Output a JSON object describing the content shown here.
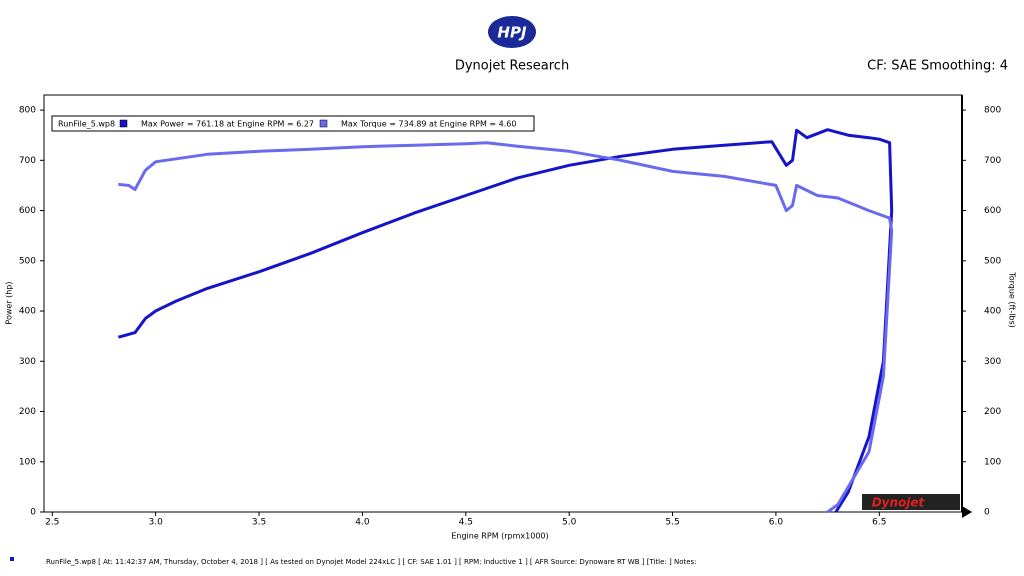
{
  "chart_data": {
    "type": "line",
    "logo_text": "HPJ",
    "title": "Dynojet Research",
    "subtitle": "CF: SAE Smoothing: 4",
    "legend_title": "RunFile_5.wp8",
    "xlabel": "Engine RPM (rpmx1000)",
    "ylabel": "Power (hp)",
    "y2label": "Torque (ft-lbs)",
    "brand_text": "Dynojet",
    "footer": "RunFile_5.wp8 [ At: 11:42:37 AM, Thursday, October 4, 2018 ] [ As tested on Dynojet Model 224xLC ] [ CF: SAE 1.01 ] [ RPM: Inductive 1 ] [ AFR Source: Dynoware RT WB ] [Title: ] Notes:",
    "xlim": [
      2.46,
      6.9
    ],
    "xticks": [
      2.5,
      {
        "value": 3,
        "label": "3.0"
      },
      3.5,
      {
        "value": 4,
        "label": "4.0"
      },
      4.5,
      {
        "value": 5,
        "label": "5.0"
      },
      5.5,
      {
        "value": 6,
        "label": "6.0"
      },
      6.5
    ],
    "ylim": [
      0,
      830
    ],
    "yticks": [
      0,
      100,
      200,
      300,
      400,
      500,
      600,
      700,
      800
    ],
    "y2lim": [
      0,
      830
    ],
    "y2ticks": [
      0,
      100,
      200,
      300,
      400,
      500,
      600,
      700,
      800
    ],
    "series": [
      {
        "name": "Max Power = 761.18 at Engine RPM = 6.27",
        "color": "#1414c8",
        "x": [
          2.82,
          2.9,
          2.95,
          3.0,
          3.1,
          3.25,
          3.5,
          3.75,
          4.0,
          4.25,
          4.5,
          4.75,
          5.0,
          5.25,
          5.5,
          5.75,
          5.98,
          6.05,
          6.08,
          6.1,
          6.15,
          6.25,
          6.35,
          6.45,
          6.5,
          6.55,
          6.56,
          6.52,
          6.45,
          6.35,
          6.29
        ],
        "values": [
          348,
          357,
          385,
          400,
          420,
          445,
          478,
          515,
          556,
          595,
          630,
          665,
          690,
          708,
          722,
          730,
          737,
          690,
          700,
          760,
          745,
          761,
          750,
          745,
          742,
          735,
          600,
          300,
          150,
          40,
          0
        ]
      },
      {
        "name": "Max Torque = 734.89 at Engine RPM = 4.60",
        "color": "#6a6aee",
        "axis": "y2",
        "x": [
          2.82,
          2.87,
          2.9,
          2.95,
          3.0,
          3.25,
          3.5,
          3.75,
          4.0,
          4.25,
          4.5,
          4.6,
          4.75,
          5.0,
          5.25,
          5.5,
          5.75,
          6.0,
          6.05,
          6.08,
          6.1,
          6.2,
          6.3,
          6.45,
          6.55,
          6.56,
          6.52,
          6.45,
          6.3,
          6.25
        ],
        "values": [
          652,
          650,
          642,
          680,
          697,
          712,
          718,
          722,
          727,
          730,
          733,
          735,
          728,
          718,
          700,
          678,
          668,
          650,
          600,
          610,
          650,
          630,
          625,
          600,
          585,
          560,
          270,
          120,
          15,
          0
        ]
      }
    ]
  }
}
